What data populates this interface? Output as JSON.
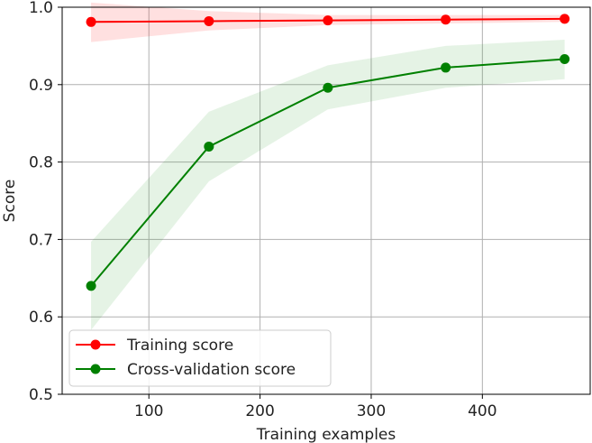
{
  "chart_data": {
    "type": "line",
    "xlabel": "Training examples",
    "ylabel": "Score",
    "xlim": [
      22,
      497
    ],
    "ylim": [
      0.5,
      1.0
    ],
    "xticks": [
      100,
      200,
      300,
      400
    ],
    "yticks": [
      0.5,
      0.6,
      0.7,
      0.8,
      0.9,
      1.0
    ],
    "xtick_labels": [
      "100",
      "200",
      "300",
      "400"
    ],
    "ytick_labels": [
      "0.5",
      "0.6",
      "0.7",
      "0.8",
      "0.9",
      "1.0"
    ],
    "grid": true,
    "legend_position": "lower-left",
    "x": [
      48,
      154,
      261,
      367,
      474
    ],
    "series": [
      {
        "name": "Training score",
        "color": "#ff0000",
        "band_color": "#ff0000",
        "values": [
          0.981,
          0.982,
          0.983,
          0.984,
          0.985
        ],
        "lower": [
          0.955,
          0.97,
          0.977,
          0.979,
          0.981
        ],
        "upper": [
          1.006,
          0.995,
          0.99,
          0.99,
          0.99
        ]
      },
      {
        "name": "Cross-validation score",
        "color": "#008000",
        "band_color": "#2ca02c",
        "values": [
          0.64,
          0.82,
          0.896,
          0.922,
          0.933
        ],
        "lower": [
          0.583,
          0.775,
          0.868,
          0.896,
          0.907
        ],
        "upper": [
          0.697,
          0.865,
          0.925,
          0.95,
          0.958
        ]
      }
    ]
  }
}
